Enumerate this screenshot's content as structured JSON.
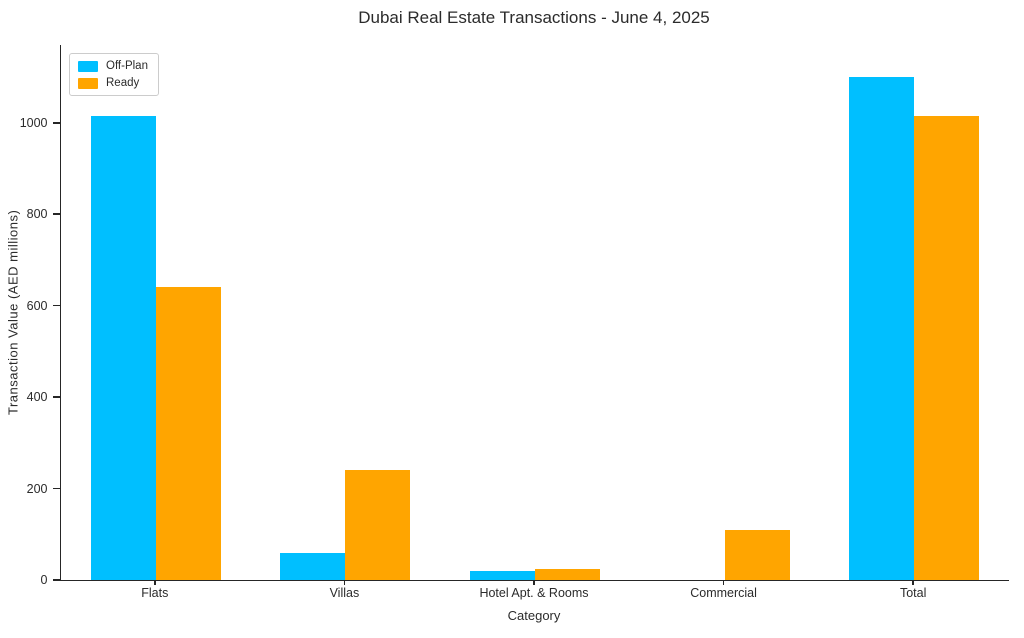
{
  "title": "Dubai Real Estate Transactions - June 4, 2025",
  "colors": {
    "off_plan": "#00BFFF",
    "ready": "#FFA500",
    "axis": "#262626",
    "text": "#2b2b2b",
    "legend_border": "#cccccc",
    "background": "#ffffff"
  },
  "chart_data": {
    "type": "bar",
    "title": "Dubai Real Estate Transactions - June 4, 2025",
    "categories": [
      "Flats",
      "Villas",
      "Hotel Apt. & Rooms",
      "Commercial",
      "Total"
    ],
    "series": [
      {
        "name": "Off-Plan",
        "color": "#00BFFF",
        "values": [
          1015,
          60,
          20,
          0,
          1100
        ]
      },
      {
        "name": "Ready",
        "color": "#FFA500",
        "values": [
          640,
          240,
          25,
          110,
          1015
        ]
      }
    ],
    "xlabel": "Category",
    "ylabel": "Transaction Value (AED millions)",
    "ylim": [
      0,
      1170
    ],
    "yticks": [
      0,
      200,
      400,
      600,
      800,
      1000
    ],
    "grid": false,
    "legend_position": "upper-left",
    "spines": {
      "top": false,
      "right": false,
      "left": true,
      "bottom": true
    }
  }
}
